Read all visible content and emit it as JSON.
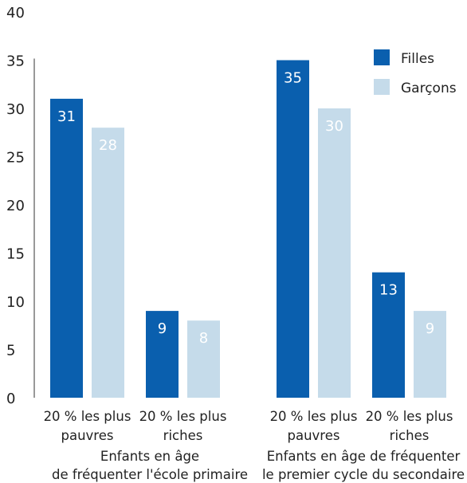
{
  "chart_data": {
    "type": "bar",
    "ylim": [
      0,
      40
    ],
    "yticks": [
      "0",
      "5",
      "10",
      "15",
      "20",
      "25",
      "30",
      "35",
      "40"
    ],
    "legend_position": "top-right",
    "series": [
      {
        "name": "Filles",
        "color": "#0a5fae",
        "values": [
          31,
          9,
          35,
          13
        ]
      },
      {
        "name": "Garçons",
        "color": "#c5dbea",
        "values": [
          28,
          8,
          30,
          9
        ]
      }
    ],
    "categories": [
      [
        "20 % les plus",
        "pauvres"
      ],
      [
        "20 % les plus",
        "riches"
      ],
      [
        "20 % les plus",
        "pauvres"
      ],
      [
        "20 % les plus",
        "riches"
      ]
    ],
    "groups": [
      {
        "lines": [
          "Enfants en âge",
          "de fréquenter l'école primaire"
        ]
      },
      {
        "lines": [
          "Enfants en âge de fréquenter",
          "le premier cycle du secondaire"
        ]
      }
    ],
    "data_labels": [
      [
        "31",
        "9",
        "35",
        "13"
      ],
      [
        "28",
        "8",
        "30",
        "9"
      ]
    ]
  }
}
